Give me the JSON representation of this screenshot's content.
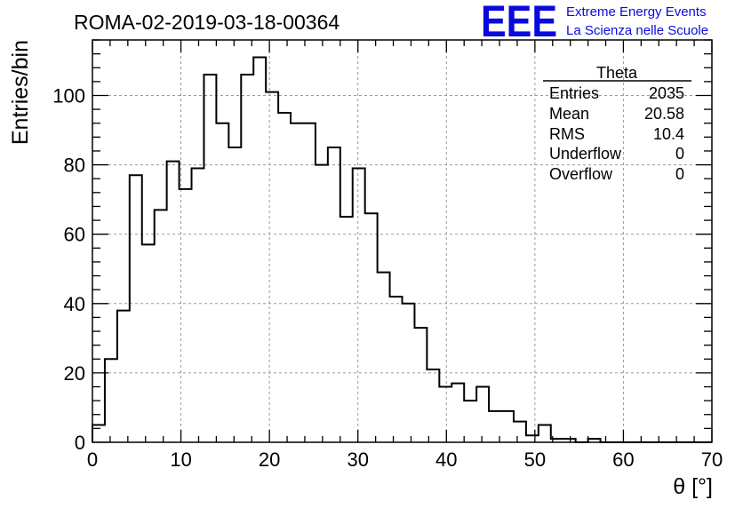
{
  "title": "ROMA-02-2019-03-18-00364",
  "logo": {
    "mark": "EEE",
    "line1": "Extreme Energy Events",
    "line2": "La Scienza nelle Scuole"
  },
  "colors": {
    "logo": "#0a0adc",
    "line": "#000000",
    "grid": "#9a9a9a"
  },
  "stats": {
    "name": "Theta",
    "rows": [
      {
        "label": "Entries",
        "value": "2035"
      },
      {
        "label": "Mean",
        "value": "20.58"
      },
      {
        "label": "RMS",
        "value": "10.4"
      },
      {
        "label": "Underflow",
        "value": "0"
      },
      {
        "label": "Overflow",
        "value": "0"
      }
    ]
  },
  "chart_data": {
    "type": "histogram",
    "title": "ROMA-02-2019-03-18-00364",
    "xlabel": "θ [°]",
    "ylabel": "Entries/bin",
    "xlim": [
      0,
      70
    ],
    "ylim": [
      0,
      116
    ],
    "xticks": [
      0,
      10,
      20,
      30,
      40,
      50,
      60,
      70
    ],
    "yticks": [
      0,
      20,
      40,
      60,
      80,
      100
    ],
    "grid": true,
    "bin_width": 1.4,
    "bin_start": 0,
    "values": [
      5,
      24,
      38,
      77,
      57,
      67,
      81,
      73,
      79,
      106,
      92,
      85,
      106,
      111,
      101,
      95,
      92,
      92,
      80,
      85,
      65,
      79,
      66,
      49,
      42,
      40,
      33,
      21,
      16,
      17,
      12,
      16,
      9,
      9,
      6,
      2,
      5,
      1,
      1,
      0,
      1,
      0,
      0,
      0,
      0,
      0,
      0,
      0,
      0,
      0
    ]
  }
}
